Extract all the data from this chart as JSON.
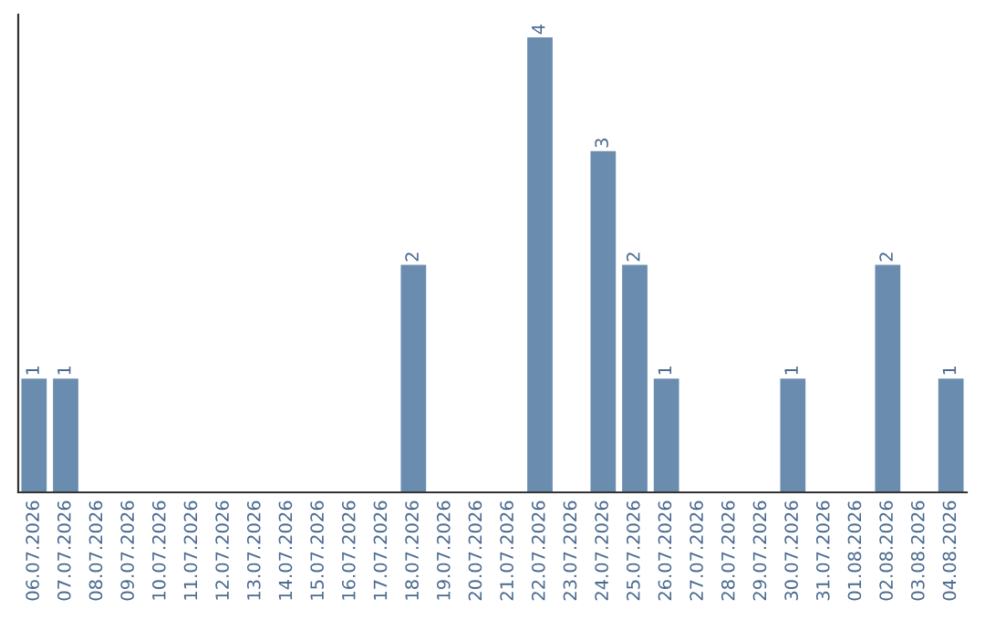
{
  "chart_data": {
    "type": "bar",
    "categories": [
      "06.07.2026",
      "07.07.2026",
      "08.07.2026",
      "09.07.2026",
      "10.07.2026",
      "11.07.2026",
      "12.07.2026",
      "13.07.2026",
      "14.07.2026",
      "15.07.2026",
      "16.07.2026",
      "17.07.2026",
      "18.07.2026",
      "19.07.2026",
      "20.07.2026",
      "21.07.2026",
      "22.07.2026",
      "23.07.2026",
      "24.07.2026",
      "25.07.2026",
      "26.07.2026",
      "27.07.2026",
      "28.07.2026",
      "29.07.2026",
      "30.07.2026",
      "31.07.2026",
      "01.08.2026",
      "02.08.2026",
      "03.08.2026",
      "04.08.2026"
    ],
    "values": [
      1,
      1,
      0,
      0,
      0,
      0,
      0,
      0,
      0,
      0,
      0,
      0,
      2,
      0,
      0,
      0,
      4,
      0,
      3,
      2,
      1,
      0,
      0,
      0,
      1,
      0,
      0,
      2,
      0,
      1
    ],
    "value_labels": [
      "1",
      "1",
      null,
      null,
      null,
      null,
      null,
      null,
      null,
      null,
      null,
      null,
      "2",
      null,
      null,
      null,
      "4",
      null,
      "3",
      "2",
      "1",
      null,
      null,
      null,
      "1",
      null,
      null,
      "2",
      null,
      "1"
    ],
    "color": "#6a8caf",
    "grid": false,
    "legend": false
  }
}
